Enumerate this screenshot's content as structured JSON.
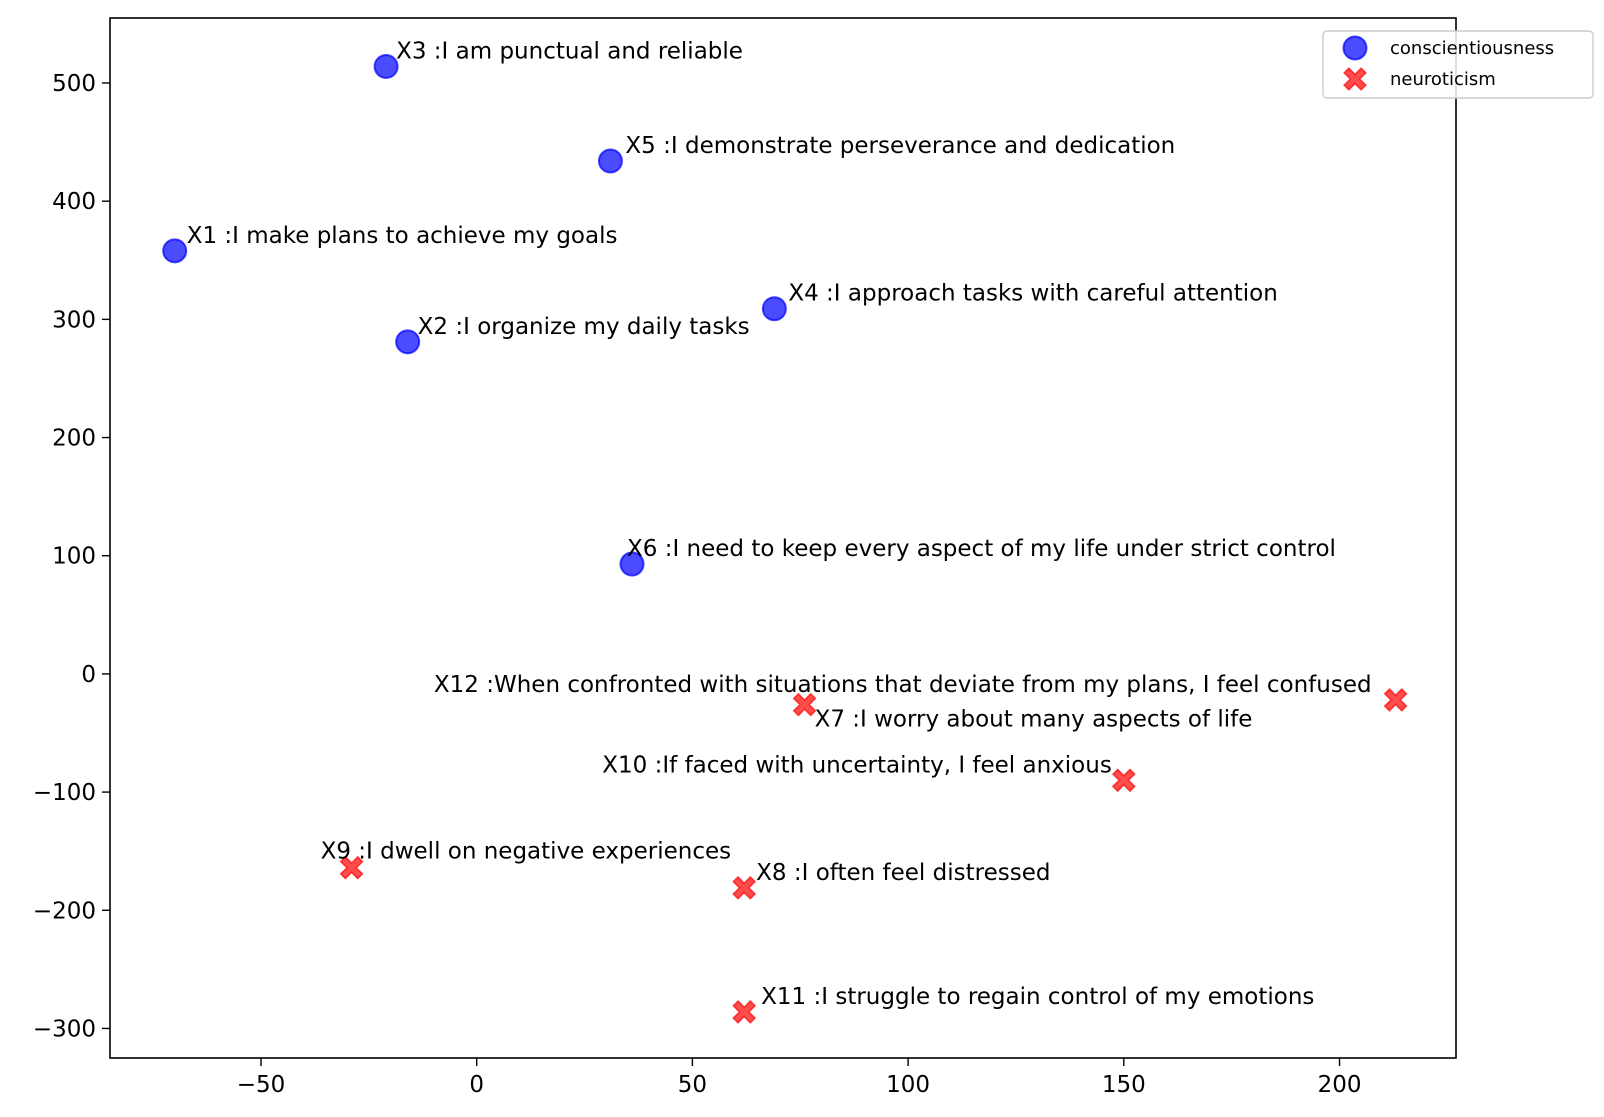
{
  "chart_data": {
    "type": "scatter",
    "title": "",
    "xlabel": "",
    "ylabel": "",
    "xlim": [
      -85,
      227
    ],
    "ylim": [
      -325,
      555
    ],
    "xticks": [
      -50,
      0,
      50,
      100,
      150,
      200
    ],
    "yticks": [
      -300,
      -200,
      -100,
      0,
      100,
      200,
      300,
      400,
      500
    ],
    "grid": false,
    "legend_position": "top-right",
    "series": [
      {
        "name": "conscientiousness",
        "marker": "circle",
        "color": "#0000ff",
        "points": [
          {
            "x": -70,
            "y": 358,
            "label": "X1 :I make plans to achieve my goals"
          },
          {
            "x": -16,
            "y": 281,
            "label": "X2 :I organize my daily tasks"
          },
          {
            "x": -21,
            "y": 514,
            "label": "X3 :I am punctual and reliable"
          },
          {
            "x": 69,
            "y": 309,
            "label": "X4 :I approach tasks with careful attention"
          },
          {
            "x": 31,
            "y": 434,
            "label": "X5 :I demonstrate perseverance and dedication"
          },
          {
            "x": 36,
            "y": 93,
            "label": "X6 :I need to keep every aspect of my life under strict control"
          }
        ]
      },
      {
        "name": "neuroticism",
        "marker": "x",
        "color": "#ff0000",
        "points": [
          {
            "x": 76,
            "y": -26,
            "label": "X7 :I worry about many aspects of life"
          },
          {
            "x": 62,
            "y": -181,
            "label": "X8 :I often feel distressed"
          },
          {
            "x": -29,
            "y": -164,
            "label": "X9 :I dwell on negative experiences"
          },
          {
            "x": 150,
            "y": -90,
            "label": "X10 :If faced with uncertainty, I feel anxious"
          },
          {
            "x": 62,
            "y": -286,
            "label": "X11 :I struggle to regain control of my emotions"
          },
          {
            "x": 213,
            "y": -22,
            "label": "X12 :When confronted with situations that deviate from my plans, I feel confused"
          }
        ]
      }
    ]
  }
}
